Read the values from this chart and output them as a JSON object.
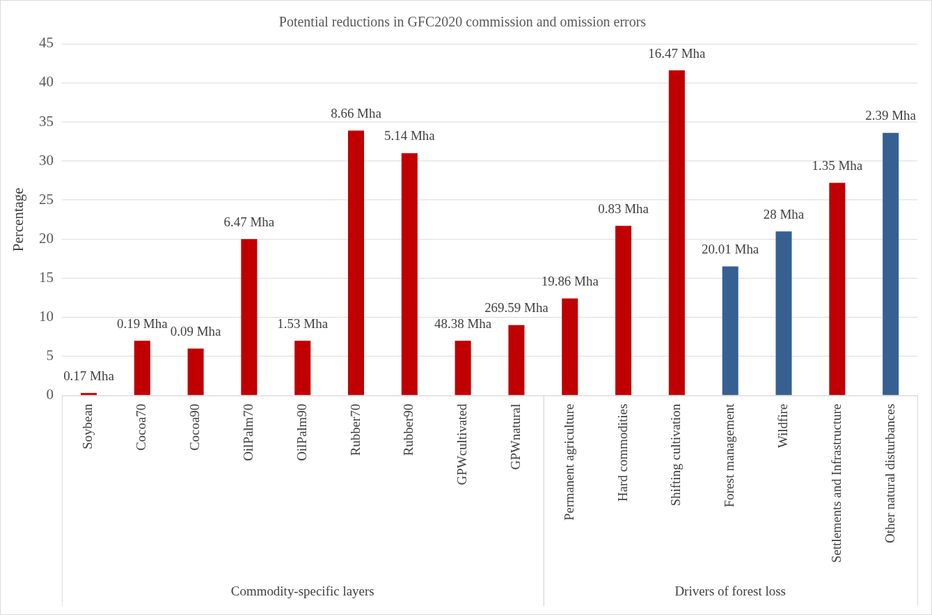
{
  "chart_data": {
    "type": "bar",
    "title": "Potential reductions in GFC2020 commission and omission errors",
    "ylabel": "Percentage",
    "categories": [
      "Soybean",
      "Cocoa70",
      "Cocoa90",
      "OilPalm70",
      "OilPalm90",
      "Rubber70",
      "Rubber90",
      "GPWcultivated",
      "GPWnatural",
      "Permanent agriculture",
      "Hard commodities",
      "Shifting cultivation",
      "Forest management",
      "Wildfire",
      "Settlements and Infrastructure",
      "Other natural disturbances"
    ],
    "stacked": true,
    "series": [
      {
        "values": [
          0.3,
          7,
          6,
          20,
          7,
          33.9,
          31,
          7,
          9,
          null,
          null,
          null,
          null,
          null,
          null,
          null
        ],
        "colors": [
          "#c00000",
          "#c00000",
          "#c00000",
          "#c00000",
          "#c00000",
          "#c00000",
          "#c00000",
          "#c00000",
          "#c00000",
          null,
          null,
          null,
          null,
          null,
          null,
          null
        ]
      },
      {
        "values": [
          null,
          null,
          null,
          null,
          null,
          null,
          null,
          null,
          null,
          12.4,
          21.7,
          41.6,
          16.5,
          21,
          27.2,
          33.6
        ],
        "colors": [
          null,
          null,
          null,
          null,
          null,
          null,
          null,
          null,
          null,
          "#c00000",
          "#c00000",
          "#c00000",
          "#366092",
          "#366092",
          "#c00000",
          "#366092"
        ]
      }
    ],
    "annotations": [
      "Commodity-specific layers",
      "Drivers of forest loss",
      {
        "text": "0.17 Mha",
        "x": "Soybean",
        "y": 0.3
      },
      {
        "text": "0.19 Mha",
        "x": "Cocoa70",
        "y": 7
      },
      {
        "text": "0.09 Mha",
        "x": "Cocoa90",
        "y": 6
      },
      {
        "text": "6.47 Mha",
        "x": "OilPalm70",
        "y": 20
      },
      {
        "text": "1.53 Mha",
        "x": "OilPalm90",
        "y": 7
      },
      {
        "text": "8.66 Mha",
        "x": "Rubber70",
        "y": 33.9
      },
      {
        "text": "5.14 Mha",
        "x": "Rubber90",
        "y": 31
      },
      {
        "text": "48.38 Mha",
        "x": "GPWcultivated",
        "y": 7
      },
      {
        "text": "269.59 Mha",
        "x": "GPWnatural",
        "y": 9
      },
      {
        "text": "19.86 Mha",
        "x": "Permanent agriculture",
        "y": 12.4
      },
      {
        "text": "0.83 Mha",
        "x": "Hard commodities",
        "y": 21.7
      },
      {
        "text": "16.47 Mha",
        "x": "Shifting cultivation",
        "y": 41.6
      },
      {
        "text": "20.01 Mha",
        "x": "Forest management",
        "y": 16.5
      },
      {
        "text": "28 Mha",
        "x": "Wildfire",
        "y": 21
      },
      {
        "text": "1.35 Mha",
        "x": "Settlements and Infrastructure",
        "y": 27.2
      },
      {
        "text": "2.39 Mha",
        "x": "Other natural disturbances",
        "y": 33.6
      }
    ],
    "ylim": [
      0,
      45
    ],
    "yticks": [
      0,
      5,
      10,
      15,
      20,
      25,
      30,
      35,
      40,
      45
    ],
    "grid": "y",
    "legend": false
  }
}
